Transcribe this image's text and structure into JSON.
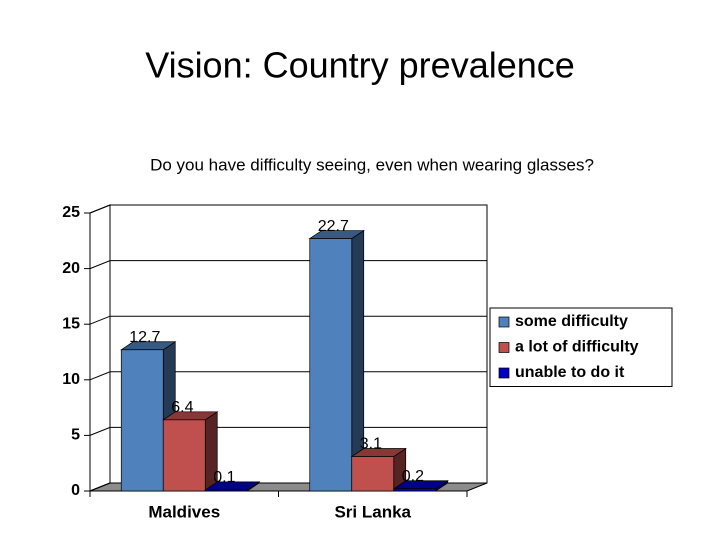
{
  "chart_data": {
    "type": "bar3d",
    "title": "Vision: Country prevalence",
    "subtitle": "Do you have difficulty seeing, even when wearing glasses?",
    "categories": [
      "Maldives",
      "Sri Lanka"
    ],
    "series": [
      {
        "name": "some difficulty",
        "color": "#4f81bd",
        "values": [
          12.7,
          22.7
        ]
      },
      {
        "name": "a lot of difficulty",
        "color": "#c0504d",
        "values": [
          6.4,
          3.1
        ]
      },
      {
        "name": "unable to do it",
        "color": "#0000c0",
        "values": [
          0.1,
          0.2
        ]
      }
    ],
    "ylim": [
      0,
      25
    ],
    "yticks": [
      0,
      5,
      10,
      15,
      20,
      25
    ],
    "grid": true,
    "legend": "right"
  }
}
